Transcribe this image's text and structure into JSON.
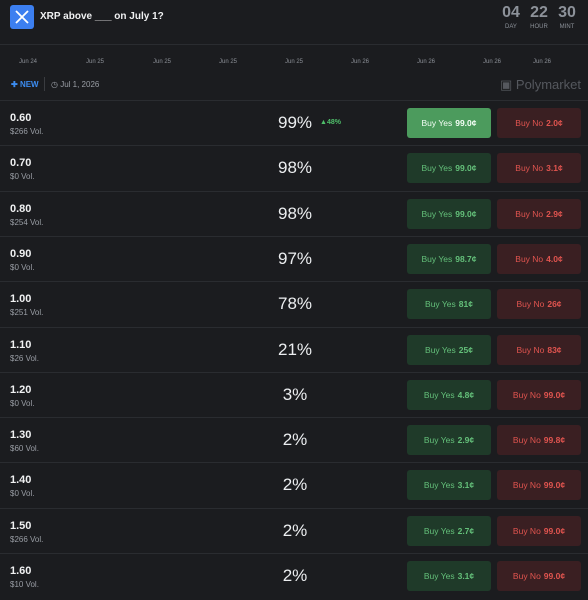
{
  "header": {
    "title": "XRP above ___ on July 1?",
    "countdown": [
      {
        "value": "04",
        "unit": "DAY"
      },
      {
        "value": "22",
        "unit": "HOUR"
      },
      {
        "value": "30",
        "unit": "MINT"
      }
    ]
  },
  "timeline": {
    "labels": [
      "Jun 24",
      "Jun 25",
      "Jun 25",
      "Jun 25",
      "Jun 25",
      "Jun 26",
      "Jun 26",
      "Jun 26",
      "Jun 26"
    ]
  },
  "info": {
    "badge": "NEW",
    "date": "Jul 1, 2026",
    "brand": "Polymarket"
  },
  "buttons": {
    "yes": "Buy Yes",
    "no": "Buy No"
  },
  "table": {
    "rows": [
      {
        "strike": "0.60",
        "volume": "$266 Vol.",
        "chance": "99%",
        "change": "48%",
        "yes": "99.0¢",
        "no": "2.0¢"
      },
      {
        "strike": "0.70",
        "volume": "$0 Vol.",
        "chance": "98%",
        "yes": "99.0¢",
        "no": "3.1¢"
      },
      {
        "strike": "0.80",
        "volume": "$254 Vol.",
        "chance": "98%",
        "yes": "99.0¢",
        "no": "2.9¢"
      },
      {
        "strike": "0.90",
        "volume": "$0 Vol.",
        "chance": "97%",
        "yes": "98.7¢",
        "no": "4.0¢"
      },
      {
        "strike": "1.00",
        "volume": "$251 Vol.",
        "chance": "78%",
        "yes": "81¢",
        "no": "26¢"
      },
      {
        "strike": "1.10",
        "volume": "$26 Vol.",
        "chance": "21%",
        "yes": "25¢",
        "no": "83¢"
      },
      {
        "strike": "1.20",
        "volume": "$0 Vol.",
        "chance": "3%",
        "yes": "4.8¢",
        "no": "99.0¢"
      },
      {
        "strike": "1.30",
        "volume": "$60 Vol.",
        "chance": "2%",
        "yes": "2.9¢",
        "no": "99.8¢"
      },
      {
        "strike": "1.40",
        "volume": "$0 Vol.",
        "chance": "2%",
        "yes": "3.1¢",
        "no": "99.0¢"
      },
      {
        "strike": "1.50",
        "volume": "$266 Vol.",
        "chance": "2%",
        "yes": "2.7¢",
        "no": "99.0¢"
      },
      {
        "strike": "1.60",
        "volume": "$10 Vol.",
        "chance": "2%",
        "yes": "3.1¢",
        "no": "99.0¢"
      }
    ]
  }
}
